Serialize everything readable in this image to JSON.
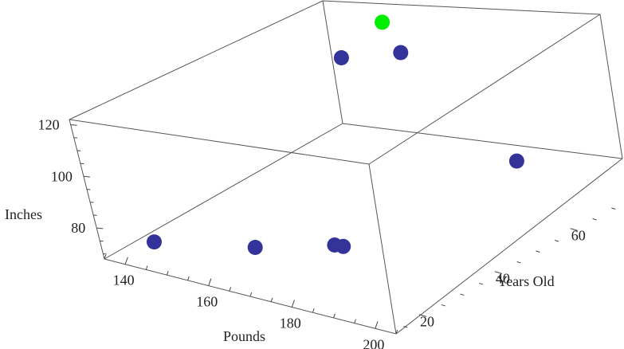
{
  "chart_data": {
    "type": "scatter",
    "projection": "3d-box",
    "title": "",
    "xlabel": "Pounds",
    "ylabel": "Years Old",
    "zlabel": "Inches",
    "xlim": [
      135,
      205
    ],
    "ylim": [
      12,
      75
    ],
    "zlim": [
      68,
      122
    ],
    "xticks": [
      "140",
      "160",
      "180",
      "200"
    ],
    "yticks": [
      "20",
      "40",
      "60"
    ],
    "zticks": [
      "80",
      "100",
      "120"
    ],
    "grid": false,
    "legend": "none",
    "series": [
      {
        "color": "#333399",
        "points": [
          {
            "x": 140,
            "y": 20,
            "z": 70
          },
          {
            "x": 160,
            "y": 25,
            "z": 72
          },
          {
            "x": 175,
            "y": 30,
            "z": 75
          },
          {
            "x": 176,
            "y": 31,
            "z": 74
          },
          {
            "x": 185,
            "y": 68,
            "z": 80
          },
          {
            "x": 150,
            "y": 65,
            "z": 108
          },
          {
            "x": 160,
            "y": 70,
            "z": 110
          }
        ]
      },
      {
        "color": "#00ee00",
        "points": [
          {
            "x": 155,
            "y": 72,
            "z": 118
          }
        ]
      }
    ]
  }
}
